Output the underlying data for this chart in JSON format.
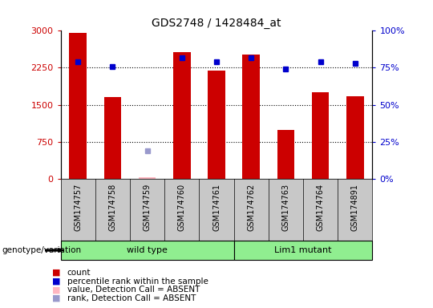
{
  "title": "GDS2748 / 1428484_at",
  "samples": [
    "GSM174757",
    "GSM174758",
    "GSM174759",
    "GSM174760",
    "GSM174761",
    "GSM174762",
    "GSM174763",
    "GSM174764",
    "GSM174891"
  ],
  "counts": [
    2950,
    1650,
    30,
    2560,
    2190,
    2520,
    990,
    1750,
    1670
  ],
  "percentile_ranks": [
    79,
    76,
    null,
    82,
    79,
    82,
    74,
    79,
    78
  ],
  "absent_value": [
    null,
    null,
    30,
    null,
    null,
    null,
    null,
    null,
    null
  ],
  "absent_rank_pct": [
    null,
    null,
    19,
    null,
    null,
    null,
    null,
    null,
    null
  ],
  "group_label": "genotype/variation",
  "wt_count": 5,
  "lm_count": 4,
  "wt_label": "wild type",
  "lm_label": "Lim1 mutant",
  "group_color": "#90EE90",
  "ylim_left": [
    0,
    3000
  ],
  "ylim_right": [
    0,
    100
  ],
  "yticks_left": [
    0,
    750,
    1500,
    2250,
    3000
  ],
  "yticks_right": [
    0,
    25,
    50,
    75,
    100
  ],
  "ytick_labels_left": [
    "0",
    "750",
    "1500",
    "2250",
    "3000"
  ],
  "ytick_labels_right": [
    "0%",
    "25%",
    "50%",
    "75%",
    "100%"
  ],
  "bar_color": "#CC0000",
  "dot_color": "#0000CC",
  "absent_bar_color": "#FFB6C1",
  "absent_dot_color": "#9999CC",
  "bar_width": 0.5,
  "left_tick_color": "#CC0000",
  "right_tick_color": "#0000CC",
  "sample_bg": "#C8C8C8",
  "grid_color": "#000000",
  "legend_items": [
    {
      "color": "#CC0000",
      "label": "count"
    },
    {
      "color": "#0000CC",
      "label": "percentile rank within the sample"
    },
    {
      "color": "#FFB6C1",
      "label": "value, Detection Call = ABSENT"
    },
    {
      "color": "#9999CC",
      "label": "rank, Detection Call = ABSENT"
    }
  ]
}
